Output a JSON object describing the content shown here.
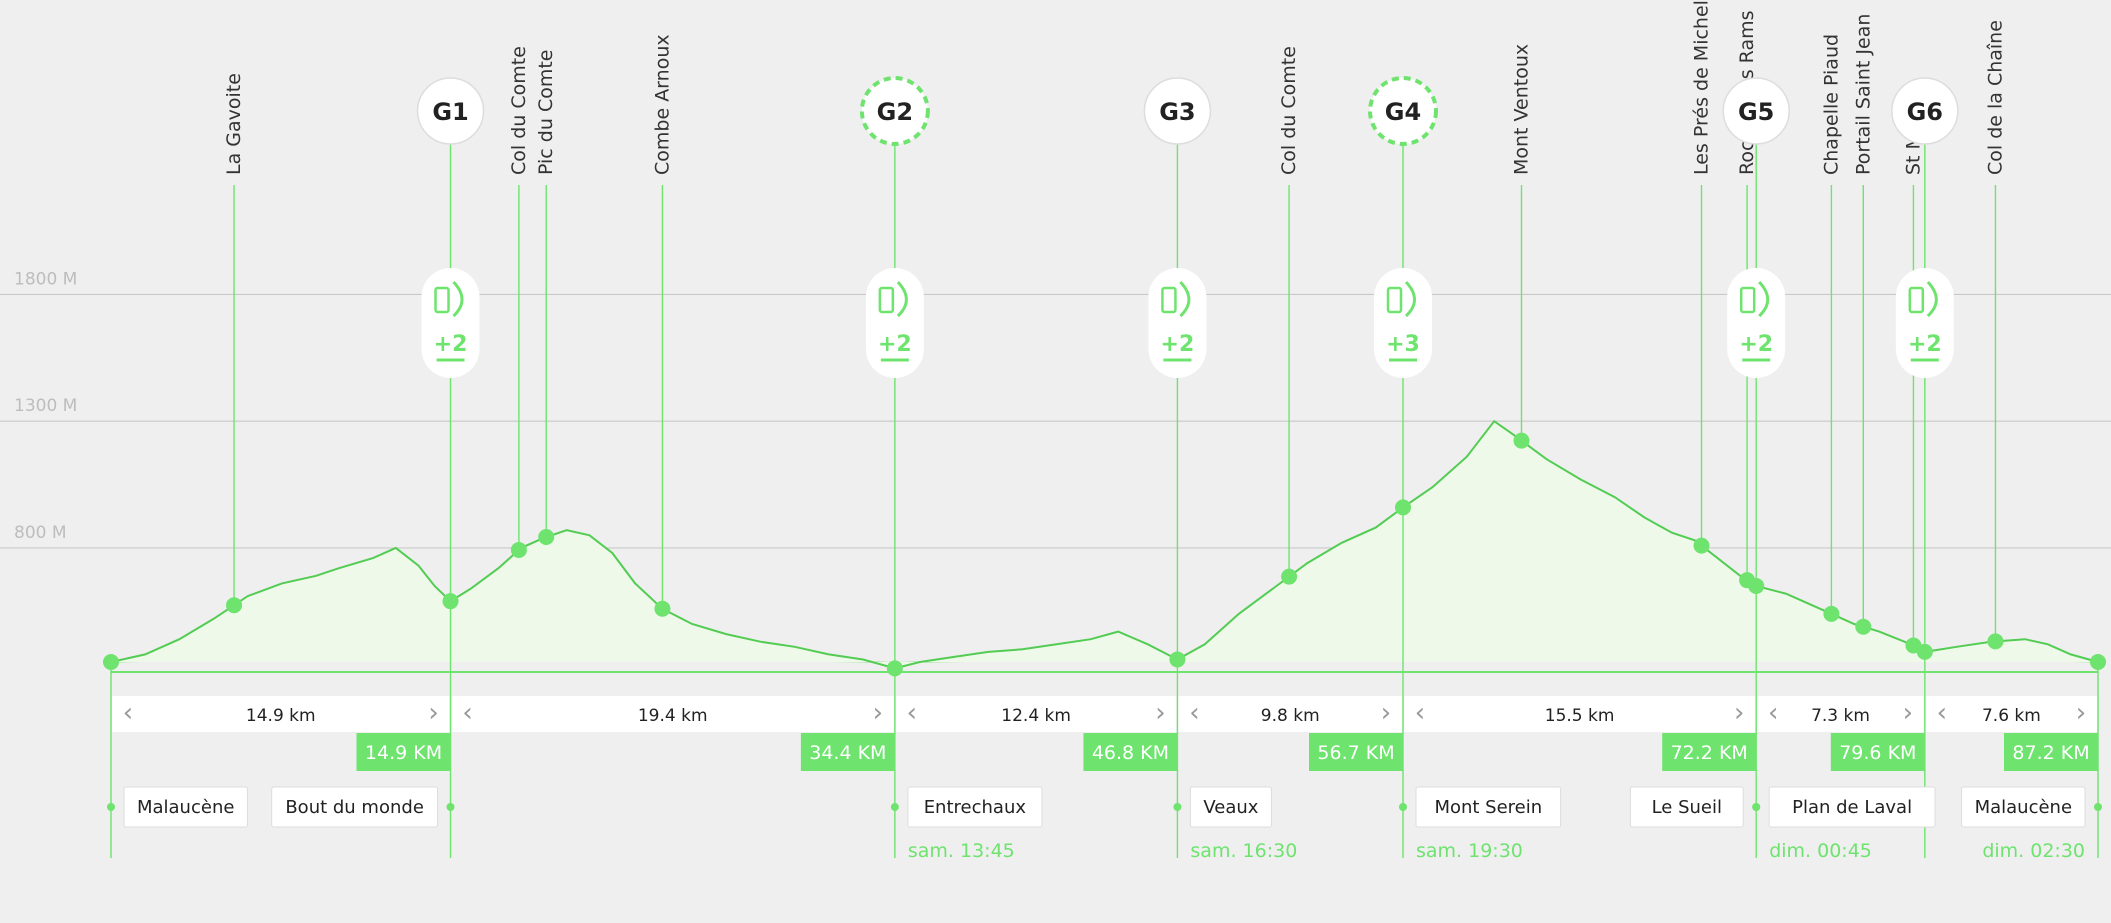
{
  "colors": {
    "background": "#efefef",
    "accent": "#6ee36e",
    "accent_dark": "#53cc53",
    "profile_fill": "#eef9ea",
    "gridline": "#c9c9c9",
    "gridlabel": "#bdbdbd",
    "text": "#333333",
    "stroke": "#7fe07f"
  },
  "chart_data": {
    "type": "area",
    "x_unit": "km",
    "y_unit": "m",
    "ylim": [
      300,
      2000
    ],
    "xlim": [
      0,
      87.2
    ],
    "y_ticks": [
      {
        "value": 800,
        "label": "800 M"
      },
      {
        "value": 1300,
        "label": "1300 M"
      },
      {
        "value": 1800,
        "label": "1800 M"
      }
    ],
    "profile": [
      [
        0,
        350
      ],
      [
        1.5,
        380
      ],
      [
        3,
        440
      ],
      [
        4.5,
        520
      ],
      [
        6,
        610
      ],
      [
        7.5,
        660
      ],
      [
        9,
        690
      ],
      [
        10,
        720
      ],
      [
        11.5,
        760
      ],
      [
        12.5,
        800
      ],
      [
        13.5,
        730
      ],
      [
        14.2,
        650
      ],
      [
        14.9,
        590
      ],
      [
        15.8,
        640
      ],
      [
        17,
        720
      ],
      [
        18,
        800
      ],
      [
        19,
        840
      ],
      [
        20,
        870
      ],
      [
        21,
        850
      ],
      [
        22,
        780
      ],
      [
        23,
        660
      ],
      [
        24.2,
        560
      ],
      [
        25.5,
        500
      ],
      [
        27,
        460
      ],
      [
        28.5,
        430
      ],
      [
        30,
        410
      ],
      [
        31.5,
        380
      ],
      [
        33,
        360
      ],
      [
        34.4,
        325
      ],
      [
        35.5,
        350
      ],
      [
        37,
        370
      ],
      [
        38.5,
        390
      ],
      [
        40,
        400
      ],
      [
        41.5,
        420
      ],
      [
        43,
        440
      ],
      [
        44.2,
        470
      ],
      [
        45.5,
        420
      ],
      [
        46.8,
        360
      ],
      [
        48,
        420
      ],
      [
        49.5,
        540
      ],
      [
        51,
        640
      ],
      [
        52.5,
        740
      ],
      [
        54,
        820
      ],
      [
        55.5,
        880
      ],
      [
        56.7,
        960
      ],
      [
        58,
        1040
      ],
      [
        59.5,
        1160
      ],
      [
        60.7,
        1300
      ],
      [
        61.5,
        1250
      ],
      [
        63,
        1150
      ],
      [
        64.5,
        1070
      ],
      [
        66,
        1000
      ],
      [
        67.3,
        920
      ],
      [
        68.5,
        860
      ],
      [
        69.5,
        830
      ],
      [
        70.5,
        760
      ],
      [
        71.5,
        690
      ],
      [
        72.2,
        650
      ],
      [
        73.5,
        620
      ],
      [
        74.5,
        580
      ],
      [
        75.5,
        540
      ],
      [
        76.5,
        500
      ],
      [
        77.6,
        470
      ],
      [
        79,
        420
      ],
      [
        79.6,
        390
      ],
      [
        81,
        410
      ],
      [
        82.5,
        430
      ],
      [
        84,
        440
      ],
      [
        85,
        420
      ],
      [
        86,
        380
      ],
      [
        87.2,
        350
      ]
    ],
    "gaps": [
      {
        "label": "14.9 km",
        "value": 14.9
      },
      {
        "label": "19.4 km",
        "value": 19.4
      },
      {
        "label": "12.4 km",
        "value": 12.4
      },
      {
        "label": "9.8 km",
        "value": 9.8
      },
      {
        "label": "15.5 km",
        "value": 15.5
      },
      {
        "label": "7.3 km",
        "value": 7.3
      },
      {
        "label": "7.6 km",
        "value": 7.6
      }
    ],
    "km_markers": [
      {
        "km": 14.9,
        "label": "14.9 KM"
      },
      {
        "km": 34.4,
        "label": "34.4 KM"
      },
      {
        "km": 46.8,
        "label": "46.8 KM"
      },
      {
        "km": 56.7,
        "label": "56.7 KM"
      },
      {
        "km": 72.2,
        "label": "72.2 KM"
      },
      {
        "km": 79.6,
        "label": "79.6 KM"
      },
      {
        "km": 87.2,
        "label": "87.2 KM"
      }
    ],
    "places": [
      {
        "km": 0,
        "label": "Malaucène",
        "anchor": "start",
        "time": ""
      },
      {
        "km": 14.9,
        "label": "Bout du monde",
        "anchor": "end",
        "time": ""
      },
      {
        "km": 34.4,
        "label": "Entrechaux",
        "anchor": "start",
        "time": "sam. 13:45"
      },
      {
        "km": 46.8,
        "label": "Veaux",
        "anchor": "start",
        "time": "sam. 16:30"
      },
      {
        "km": 56.7,
        "label": "Mont Serein",
        "anchor": "start",
        "time": "sam. 19:30"
      },
      {
        "km": 72.2,
        "label": "Le Sueil",
        "anchor": "end",
        "time": ""
      },
      {
        "km": 72.2,
        "label": "Plan de Laval",
        "anchor": "start",
        "time": "dim. 00:45"
      },
      {
        "km": 87.2,
        "label": "Malaucène",
        "anchor": "end",
        "time": "dim. 02:30"
      }
    ],
    "peaks": [
      {
        "km": 5.4,
        "label": "La Gavoite"
      },
      {
        "km": 17.9,
        "label": "Col du Comte"
      },
      {
        "km": 19.1,
        "label": "Pic du Comte"
      },
      {
        "km": 24.2,
        "label": "Combe Arnoux"
      },
      {
        "km": 51.7,
        "label": "Col du Comte"
      },
      {
        "km": 61.9,
        "label": "Mont Ventoux"
      },
      {
        "km": 69.8,
        "label": "Les Prés de Michel"
      },
      {
        "km": 71.8,
        "label": "Rocher des Rams"
      },
      {
        "km": 75.5,
        "label": "Chapelle Piaud"
      },
      {
        "km": 76.9,
        "label": "Portail Saint Jean"
      },
      {
        "km": 79.1,
        "label": "St Michel"
      },
      {
        "km": 82.7,
        "label": "Col de la Chaîne"
      }
    ],
    "aid_stations": [
      {
        "km": 14.9,
        "label": "G1",
        "style": "solid",
        "refuel": "+2"
      },
      {
        "km": 34.4,
        "label": "G2",
        "style": "dashed",
        "refuel": "+2"
      },
      {
        "km": 46.8,
        "label": "G3",
        "style": "solid",
        "refuel": "+2"
      },
      {
        "km": 56.7,
        "label": "G4",
        "style": "dashed",
        "refuel": "+3"
      },
      {
        "km": 72.2,
        "label": "G5",
        "style": "solid",
        "refuel": "+2"
      },
      {
        "km": 79.6,
        "label": "G6",
        "style": "solid",
        "refuel": "+2"
      }
    ]
  }
}
